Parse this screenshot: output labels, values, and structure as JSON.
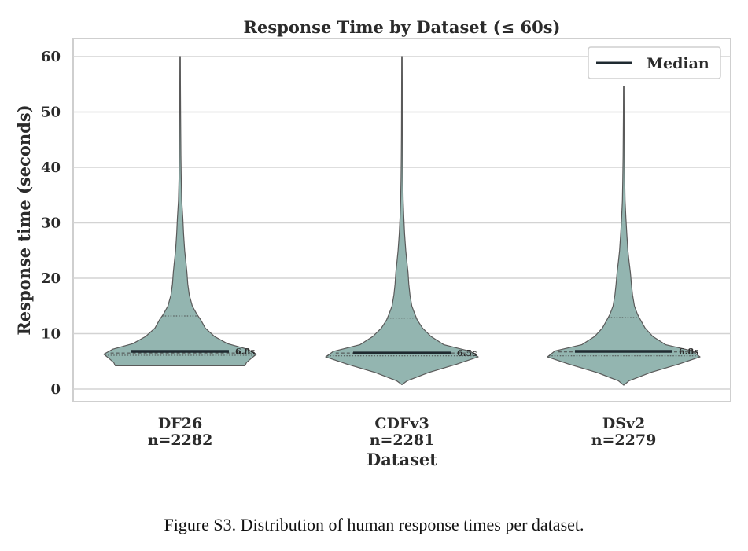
{
  "caption": "Figure S3.  Distribution of human response times per dataset.",
  "chart_data": {
    "type": "violin",
    "title": "Response Time by Dataset (≤ 60s)",
    "xlabel": "Dataset",
    "ylabel": "Response time (seconds)",
    "ylim": [
      -2,
      63
    ],
    "yticks": [
      0,
      10,
      20,
      30,
      40,
      50,
      60
    ],
    "grid": "horizontal",
    "legend": {
      "position": "top-right",
      "entries": [
        "Median"
      ]
    },
    "colors": {
      "violin_fill": "#93b5b0",
      "violin_edge": "#5a5a5a",
      "median": "#1f2a30",
      "grid": "#d3d3d3"
    },
    "categories": [
      {
        "name": "DF26",
        "count_label": "n=2282",
        "median": 6.8,
        "median_label": "6.8s",
        "q1": 6.1,
        "q3": 13.2,
        "mean": 6.5,
        "min": 4.2,
        "max": 60,
        "density": [
          [
            4.2,
            0.85
          ],
          [
            4.8,
            0.87
          ],
          [
            5.5,
            0.93
          ],
          [
            6.3,
            1.0
          ],
          [
            7.2,
            0.88
          ],
          [
            8.2,
            0.62
          ],
          [
            9.5,
            0.45
          ],
          [
            11,
            0.33
          ],
          [
            12.5,
            0.27
          ],
          [
            13.5,
            0.22
          ],
          [
            15,
            0.16
          ],
          [
            17,
            0.12
          ],
          [
            19,
            0.1
          ],
          [
            21,
            0.09
          ],
          [
            23,
            0.075
          ],
          [
            25,
            0.06
          ],
          [
            28,
            0.045
          ],
          [
            31,
            0.035
          ],
          [
            34,
            0.022
          ],
          [
            38,
            0.014
          ],
          [
            42,
            0.01
          ],
          [
            46,
            0.008
          ],
          [
            50,
            0.006
          ],
          [
            55,
            0.004
          ],
          [
            60,
            0.003
          ]
        ]
      },
      {
        "name": "CDFv3",
        "count_label": "n=2281",
        "median": 6.5,
        "median_label": "6.5s",
        "q1": 6.0,
        "q3": 12.8,
        "mean": 6.5,
        "min": 0.8,
        "max": 60,
        "density": [
          [
            0.8,
            0.0
          ],
          [
            1.5,
            0.07
          ],
          [
            3,
            0.35
          ],
          [
            4.5,
            0.72
          ],
          [
            5.8,
            1.0
          ],
          [
            6.8,
            0.9
          ],
          [
            8,
            0.55
          ],
          [
            9.5,
            0.38
          ],
          [
            11,
            0.27
          ],
          [
            12.5,
            0.2
          ],
          [
            13.5,
            0.17
          ],
          [
            15,
            0.13
          ],
          [
            17,
            0.105
          ],
          [
            19,
            0.09
          ],
          [
            21,
            0.08
          ],
          [
            23,
            0.065
          ],
          [
            25,
            0.05
          ],
          [
            28,
            0.035
          ],
          [
            31,
            0.025
          ],
          [
            34,
            0.016
          ],
          [
            38,
            0.011
          ],
          [
            42,
            0.008
          ],
          [
            46,
            0.006
          ],
          [
            50,
            0.005
          ],
          [
            55,
            0.004
          ],
          [
            60,
            0.003
          ]
        ]
      },
      {
        "name": "DSv2",
        "count_label": "n=2279",
        "median": 6.8,
        "median_label": "6.8s",
        "q1": 6.0,
        "q3": 12.9,
        "mean": 6.7,
        "min": 0.7,
        "max": 54.6,
        "density": [
          [
            0.7,
            0.0
          ],
          [
            1.5,
            0.07
          ],
          [
            3,
            0.35
          ],
          [
            4.5,
            0.72
          ],
          [
            5.8,
            1.0
          ],
          [
            6.9,
            0.9
          ],
          [
            8,
            0.55
          ],
          [
            9.5,
            0.38
          ],
          [
            11,
            0.28
          ],
          [
            12.5,
            0.22
          ],
          [
            13.5,
            0.18
          ],
          [
            15,
            0.14
          ],
          [
            17,
            0.115
          ],
          [
            19,
            0.1
          ],
          [
            21,
            0.088
          ],
          [
            23,
            0.07
          ],
          [
            25,
            0.055
          ],
          [
            28,
            0.04
          ],
          [
            31,
            0.028
          ],
          [
            34,
            0.018
          ],
          [
            38,
            0.012
          ],
          [
            42,
            0.008
          ],
          [
            46,
            0.006
          ],
          [
            50,
            0.004
          ],
          [
            54.6,
            0.003
          ]
        ]
      }
    ]
  }
}
